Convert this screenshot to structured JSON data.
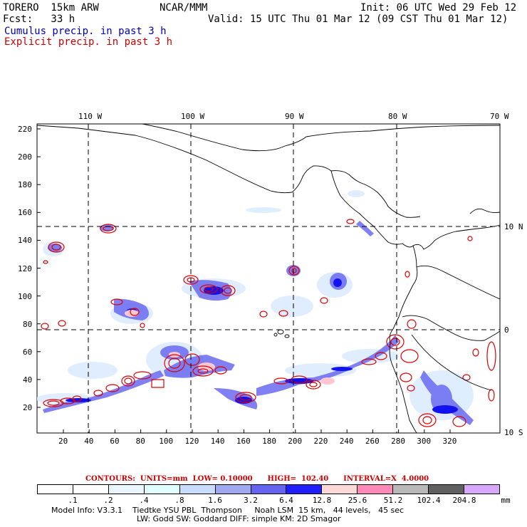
{
  "header": {
    "model": "TORERO  15km ARW",
    "org": "NCAR/MMM",
    "init": "Init: 06 UTC Wed 29 Feb 12",
    "fcst": "Fcst:   33 h",
    "valid": "Valid: 15 UTC Thu 01 Mar 12 (09 CST Thu 01 Mar 12)",
    "cumulus": "Cumulus precip. in past 3 h",
    "explicit": "Explicit precip. in past 3 h"
  },
  "axes": {
    "lon_labels": [
      "110 W",
      "100 W",
      "90 W",
      "80 W",
      "70 W"
    ],
    "lat_labels": [
      "10 N",
      "0",
      "10 S"
    ],
    "y_ticks": [
      "220",
      "200",
      "180",
      "160",
      "140",
      "120",
      "100",
      "80",
      "60",
      "40",
      "20"
    ],
    "x_ticks": [
      "20",
      "40",
      "60",
      "80",
      "100",
      "120",
      "140",
      "160",
      "180",
      "200",
      "220",
      "240",
      "260",
      "280",
      "300",
      "320"
    ]
  },
  "contours_line": "CONTOURS:  UNITS=mm  LOW= 0.10000      HIGH=  102.40      INTERVAL=X  4.0000",
  "colorbar": {
    "labels": [
      ".1",
      ".2",
      ".4",
      ".8",
      "1.6",
      "3.2",
      "6.4",
      "12.8",
      "25.6",
      "51.2",
      "102.4",
      "204.8",
      "mm"
    ],
    "colors": [
      "#ffffff",
      "#ffffff",
      "#eaf6ff",
      "#e0ffff",
      "#c8dcff",
      "#a0a8f0",
      "#6464f0",
      "#1e1eff",
      "#ffd8d8",
      "#ff8ab8",
      "#b8b8b8",
      "#606060",
      "#d8a8ff"
    ]
  },
  "model_info": {
    "line1": "Model Info: V3.3.1    Tiedtke YSU PBL  Thompson     Noah LSM  15 km,   44 levels,   45 sec",
    "line2": "LW: Godd SW: Goddard DIFF: simple KM: 2D Smagor"
  }
}
